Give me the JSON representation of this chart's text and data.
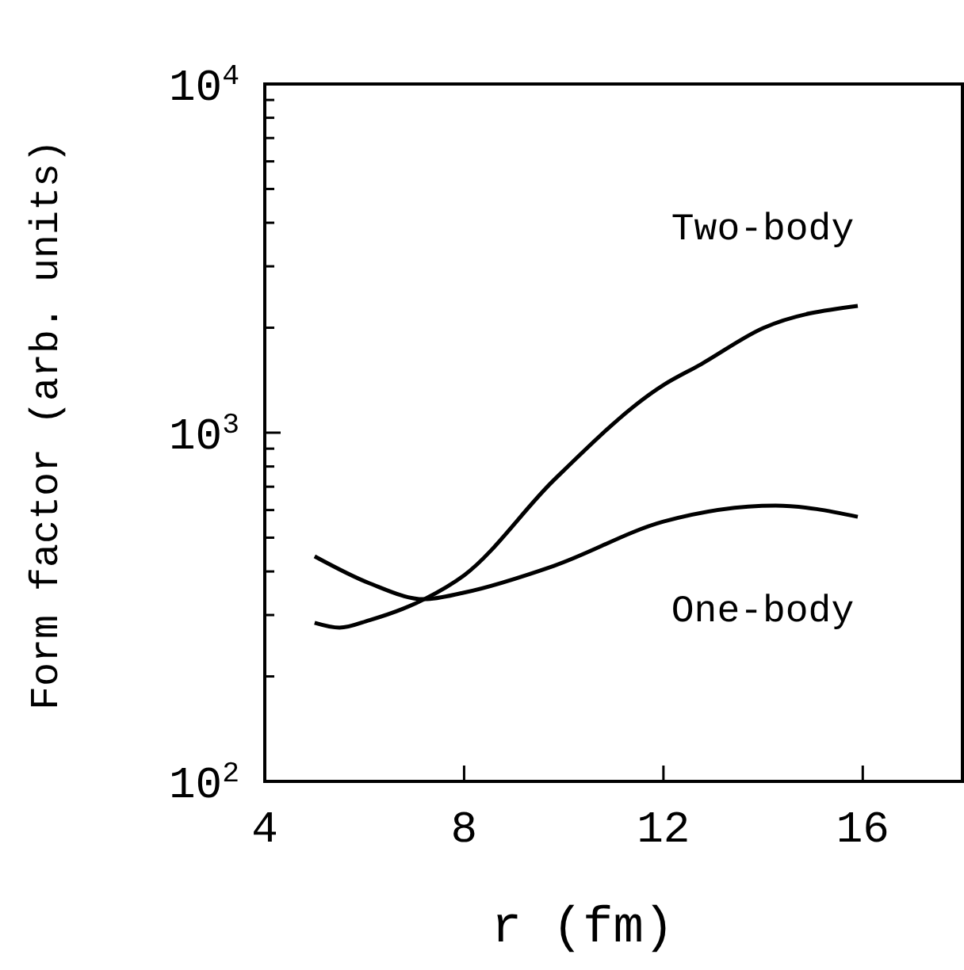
{
  "chart_data": {
    "type": "line",
    "xlabel": "r (fm)",
    "ylabel": "Form factor (arb. units)",
    "log": "y",
    "xlim": [
      4,
      18
    ],
    "xticks": [
      4,
      8,
      12,
      16
    ],
    "ylim": [
      100,
      10000
    ],
    "yticks": [
      {
        "value": 100,
        "label": "10$^{2}$"
      },
      {
        "value": 200,
        "label": null
      },
      {
        "value": 300,
        "label": null
      },
      {
        "value": 400,
        "label": null
      },
      {
        "value": 500,
        "label": null
      },
      {
        "value": 600,
        "label": null
      },
      {
        "value": 700,
        "label": null
      },
      {
        "value": 800,
        "label": null
      },
      {
        "value": 900,
        "label": null
      },
      {
        "value": 1000,
        "label": "10$^{3}$"
      },
      {
        "value": 2000,
        "label": null
      },
      {
        "value": 3000,
        "label": null
      },
      {
        "value": 4000,
        "label": null
      },
      {
        "value": 5000,
        "label": null
      },
      {
        "value": 6000,
        "label": null
      },
      {
        "value": 7000,
        "label": null
      },
      {
        "value": 8000,
        "label": null
      },
      {
        "value": 9000,
        "label": null
      },
      {
        "value": 10000,
        "label": "10$^{4}$"
      }
    ],
    "grid": false,
    "marker": "none",
    "line_style": "solid",
    "series": [
      {
        "name": "Two-body",
        "color": "#000000",
        "x": [
          5,
          5.5,
          6.1,
          7.2,
          8,
          9.8,
          12,
          12.75,
          14,
          15.9
        ],
        "values": [
          285,
          276,
          290,
          333,
          390,
          731,
          1370,
          1570,
          1995,
          2310
        ]
      },
      {
        "name": "One-body",
        "color": "#000000",
        "x": [
          5,
          6.1,
          7.2,
          8,
          9.8,
          12,
          14.25,
          15.9
        ],
        "values": [
          442,
          370,
          333,
          348,
          415,
          556,
          618,
          574
        ]
      }
    ]
  }
}
